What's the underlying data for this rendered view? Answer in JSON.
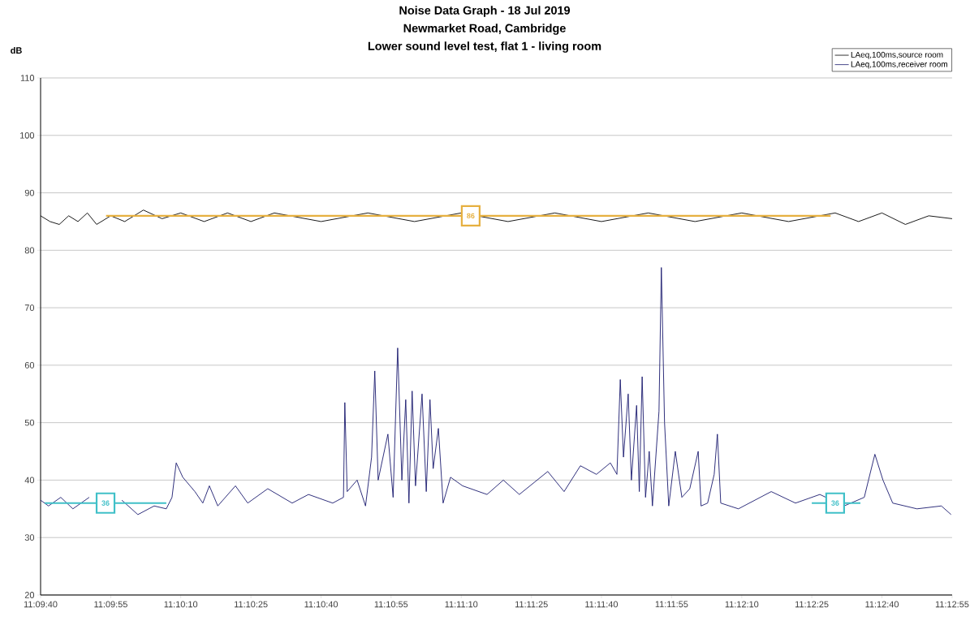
{
  "chart_data": {
    "type": "line",
    "title": "Noise Data Graph - 18 Jul 2019",
    "subtitle": "Newmarket Road, Cambridge",
    "ylabel": "dB",
    "annotations": [
      "Lower sound level test, flat 1 - living room",
      {
        "text": "86",
        "x": 11.18667,
        "y": 86
      },
      {
        "text": "36",
        "x": 11.16497,
        "y": 36
      },
      {
        "text": "36",
        "x": 11.20833,
        "y": 36
      }
    ],
    "series": [
      {
        "name": "LAeq,100ms,source room",
        "color": "#000000",
        "x": [
          11.16111,
          11.16167,
          11.16222,
          11.16278,
          11.16333,
          11.16389,
          11.16444,
          11.16528,
          11.16611,
          11.16722,
          11.16833,
          11.16944,
          11.17083,
          11.17222,
          11.17361,
          11.175,
          11.17778,
          11.18056,
          11.18333,
          11.18611,
          11.18889,
          11.19167,
          11.19444,
          11.19722,
          11.2,
          11.20278,
          11.20556,
          11.20833,
          11.20972,
          11.21111,
          11.2125,
          11.21389,
          11.21528
        ],
        "values": [
          86,
          85,
          84.5,
          86,
          85,
          86.5,
          84.5,
          86,
          85,
          87,
          85.5,
          86.5,
          85,
          86.5,
          85,
          86.5,
          85,
          86.5,
          85,
          86.5,
          85,
          86.5,
          85,
          86.5,
          85,
          86.5,
          85,
          86.5,
          85,
          86.5,
          84.5,
          86,
          85.5
        ]
      },
      {
        "name": "LAeq,100ms,receiver room",
        "color": "#1a1a6e",
        "x": [
          11.16111,
          11.16158,
          11.16231,
          11.16303,
          11.164,
          11.16497,
          11.16594,
          11.16689,
          11.16786,
          11.16858,
          11.16892,
          11.16917,
          11.16956,
          11.17028,
          11.17075,
          11.17114,
          11.17164,
          11.17269,
          11.17342,
          11.17461,
          11.17606,
          11.17703,
          11.17847,
          11.17911,
          11.17919,
          11.17933,
          11.17992,
          11.18042,
          11.18078,
          11.18097,
          11.18117,
          11.18175,
          11.18206,
          11.18233,
          11.18258,
          11.18281,
          11.183,
          11.18319,
          11.18339,
          11.18378,
          11.18403,
          11.18425,
          11.18444,
          11.18475,
          11.18503,
          11.18547,
          11.18619,
          11.18764,
          11.18861,
          11.18956,
          11.19125,
          11.19222,
          11.19319,
          11.19414,
          11.19497,
          11.19536,
          11.19556,
          11.19575,
          11.19603,
          11.19622,
          11.19653,
          11.19669,
          11.19686,
          11.19706,
          11.19728,
          11.19747,
          11.19786,
          11.198,
          11.19819,
          11.19844,
          11.19883,
          11.19922,
          11.19969,
          11.20019,
          11.20036,
          11.20075,
          11.20114,
          11.20133,
          11.20153,
          11.20258,
          11.20453,
          11.20597,
          11.20742,
          11.20886,
          11.21006,
          11.21031,
          11.21069,
          11.21117,
          11.21175,
          11.21319,
          11.21464,
          11.21522
        ],
        "values": [
          36.5,
          35.5,
          37,
          35,
          37,
          null,
          36.5,
          34,
          35.5,
          35,
          37,
          43,
          40.5,
          38,
          36,
          39,
          35.5,
          39,
          36,
          38.5,
          36,
          37.5,
          36,
          37,
          53.5,
          38,
          40,
          35.5,
          44,
          59,
          40,
          48,
          37,
          63,
          40,
          54,
          36,
          55.5,
          39,
          55,
          38,
          54,
          42,
          49,
          36,
          40.5,
          39,
          37.5,
          40,
          37.5,
          41.5,
          38,
          42.5,
          41,
          43,
          41,
          57.5,
          44,
          55,
          40,
          53,
          38,
          58,
          37,
          45,
          35.5,
          52,
          77,
          50,
          35.5,
          45,
          37,
          38.5,
          45,
          35.5,
          36,
          41,
          48,
          36,
          35,
          38,
          36,
          37.5,
          35.5,
          37,
          40,
          44.5,
          40,
          36,
          35,
          35.5,
          34
        ]
      },
      {
        "color": "#e6b040",
        "x": [
          11.165,
          11.20806
        ],
        "values": [
          86,
          86
        ]
      },
      {
        "color": "#40c0c8",
        "x": [
          11.16136,
          11.16858,
          11.1686,
          11.20694,
          11.20983
        ],
        "values": [
          36,
          36,
          null,
          36,
          36
        ]
      }
    ],
    "xlim": [
      11.16111,
      11.21528
    ],
    "ylim": [
      20,
      110
    ],
    "xticks": [
      {
        "value": 11.16111,
        "label": "11:09:40"
      },
      {
        "value": 11.16528,
        "label": "11:09:55"
      },
      {
        "value": 11.16944,
        "label": "11:10:10"
      },
      {
        "value": 11.17361,
        "label": "11:10:25"
      },
      {
        "value": 11.17778,
        "label": "11:10:40"
      },
      {
        "value": 11.18194,
        "label": "11:10:55"
      },
      {
        "value": 11.18611,
        "label": "11:11:10"
      },
      {
        "value": 11.19028,
        "label": "11:11:25"
      },
      {
        "value": 11.19444,
        "label": "11:11:40"
      },
      {
        "value": 11.19861,
        "label": "11:11:55"
      },
      {
        "value": 11.20278,
        "label": "11:12:10"
      },
      {
        "value": 11.20694,
        "label": "11:12:25"
      },
      {
        "value": 11.21111,
        "label": "11:12:40"
      },
      {
        "value": 11.21528,
        "label": "11:12:55"
      }
    ],
    "yticks": [
      20,
      30,
      40,
      50,
      60,
      70,
      80,
      90,
      100,
      110
    ],
    "grid": "y",
    "legend": "top right",
    "marker": "none",
    "line_style": "solid"
  }
}
